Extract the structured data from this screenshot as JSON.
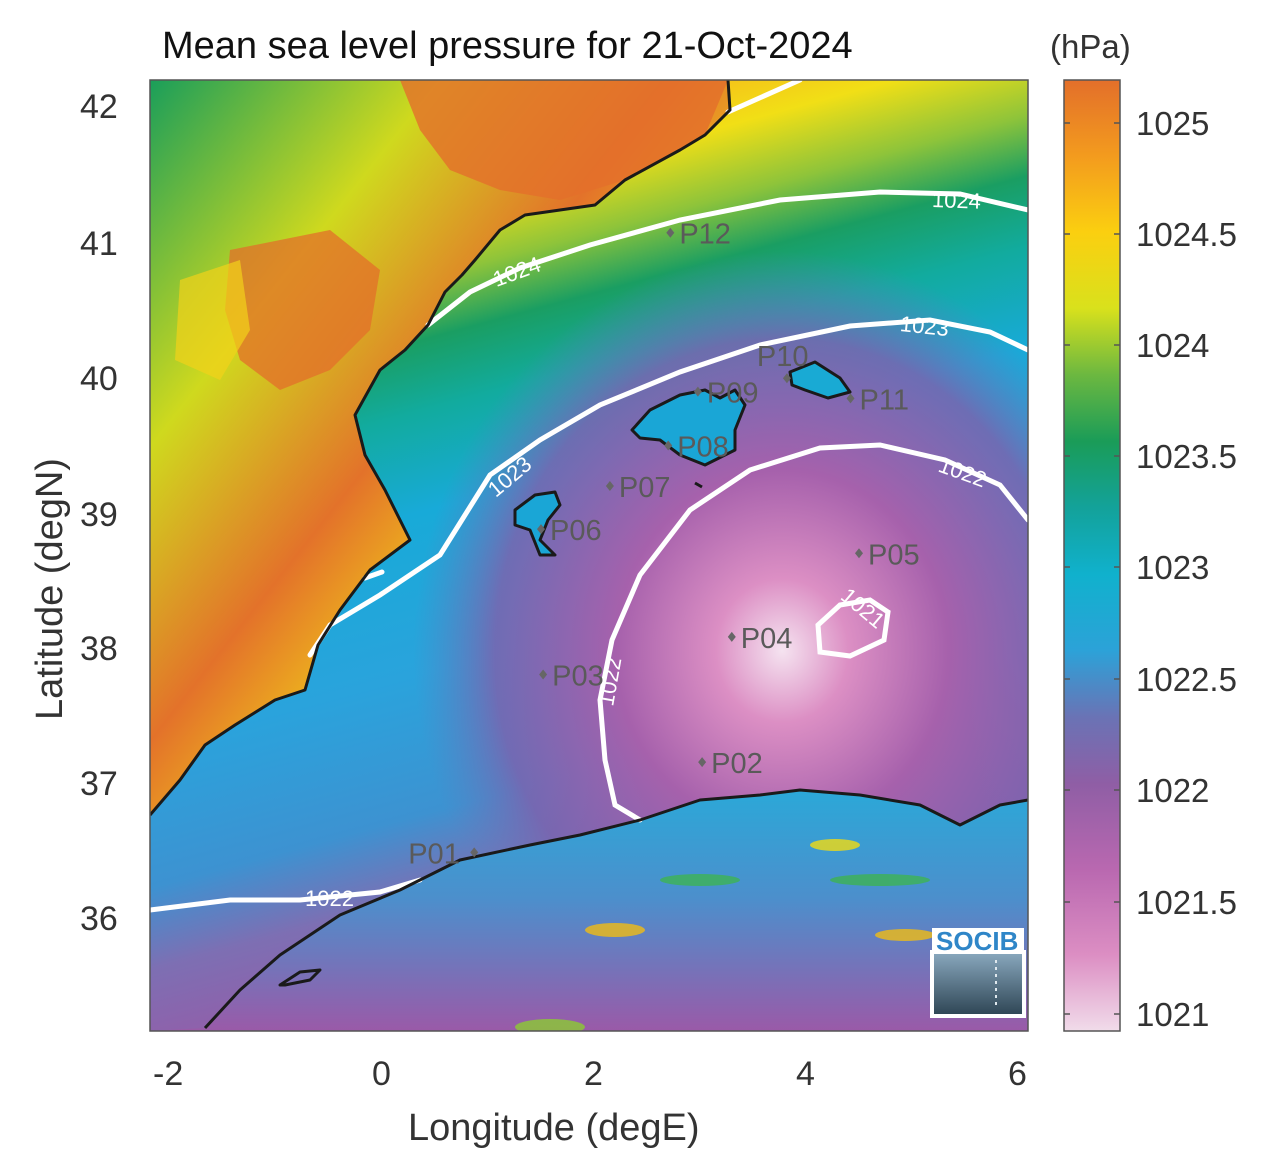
{
  "title": "Mean sea level pressure for 21-Oct-2024",
  "unit_label": "(hPa)",
  "xlabel": "Longitude (degE)",
  "ylabel": "Latitude (degN)",
  "logo_text": "SOCIB",
  "x_ticks": [
    "-2",
    "0",
    "2",
    "4",
    "6"
  ],
  "y_ticks": [
    "36",
    "37",
    "38",
    "39",
    "40",
    "41",
    "42"
  ],
  "colorbar_ticks": [
    "1021",
    "1021.5",
    "1022",
    "1022.5",
    "1023",
    "1023.5",
    "1024",
    "1024.5",
    "1025"
  ],
  "extent": {
    "lon": [
      -2.2,
      6.1
    ],
    "lat": [
      35.1,
      42.2
    ]
  },
  "colorbar_range": [
    1020.95,
    1025.2
  ],
  "colors": {
    "frame": "#555555",
    "coastline": "#1a1a1a",
    "contour": "#ffffff",
    "station_marker": "#666666"
  },
  "contour_labels": [
    {
      "text": "1024",
      "lon": 4.5,
      "lat": 41.2
    },
    {
      "text": "1024",
      "lon": 1.3,
      "lat": 40.75
    },
    {
      "text": "1023",
      "lon": 4.9,
      "lat": 40.35
    },
    {
      "text": "1023",
      "lon": 1.2,
      "lat": 39.25
    },
    {
      "text": "1022",
      "lon": 5.5,
      "lat": 39.2
    },
    {
      "text": "1022",
      "lon": 2.2,
      "lat": 37.75
    },
    {
      "text": "1022",
      "lon": 0.0,
      "lat": 36.05
    },
    {
      "text": "1021",
      "lon": 4.6,
      "lat": 38.2
    }
  ],
  "stations": [
    {
      "name": "P01",
      "lon": 0.87,
      "lat": 36.48,
      "label_side": "left"
    },
    {
      "name": "P02",
      "lon": 3.02,
      "lat": 37.15,
      "label_side": "right"
    },
    {
      "name": "P03",
      "lon": 1.52,
      "lat": 37.8,
      "label_side": "right"
    },
    {
      "name": "P04",
      "lon": 3.3,
      "lat": 38.08,
      "label_side": "right"
    },
    {
      "name": "P05",
      "lon": 4.5,
      "lat": 38.7,
      "label_side": "right"
    },
    {
      "name": "P06",
      "lon": 1.5,
      "lat": 38.88,
      "label_side": "right"
    },
    {
      "name": "P07",
      "lon": 2.15,
      "lat": 39.2,
      "label_side": "right"
    },
    {
      "name": "P08",
      "lon": 2.7,
      "lat": 39.5,
      "label_side": "right"
    },
    {
      "name": "P09",
      "lon": 2.98,
      "lat": 39.9,
      "label_side": "left-over"
    },
    {
      "name": "P10",
      "lon": 3.82,
      "lat": 40.0,
      "label_side": "top-left"
    },
    {
      "name": "P11",
      "lon": 4.42,
      "lat": 39.85,
      "label_side": "right"
    },
    {
      "name": "P12",
      "lon": 2.72,
      "lat": 41.08,
      "label_side": "right"
    }
  ]
}
